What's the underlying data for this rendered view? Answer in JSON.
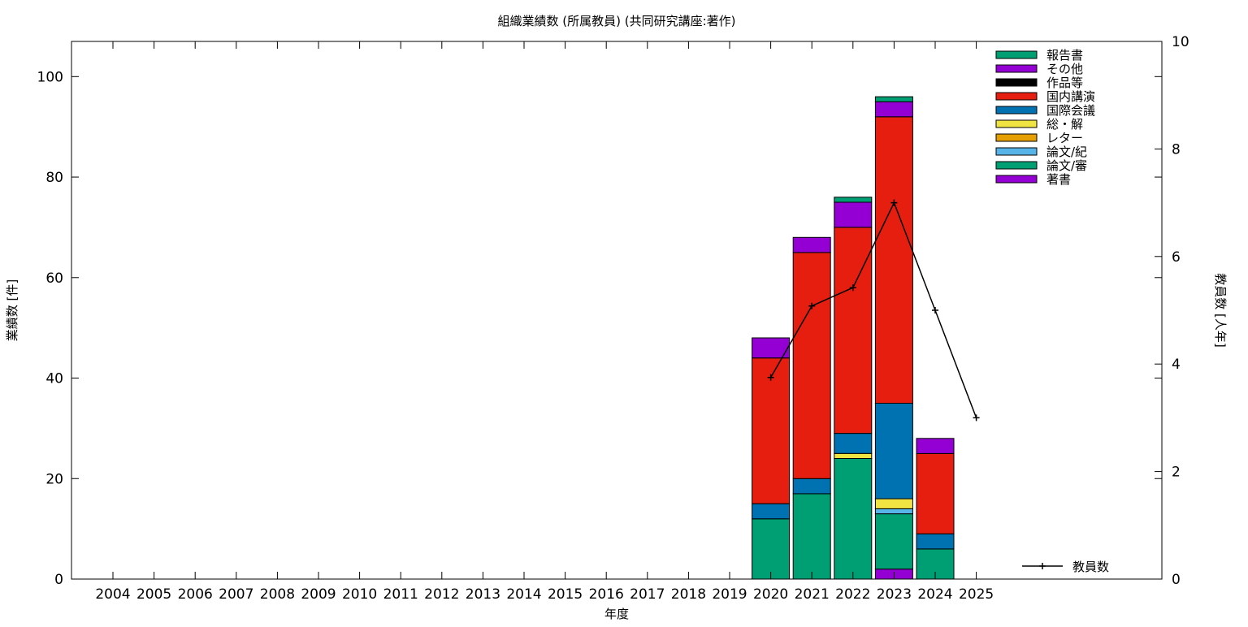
{
  "chart_data": {
    "type": "bar",
    "stacked": true,
    "title": "組織業績数 (所属教員) (共同研究講座:著作)",
    "xlabel": "年度",
    "ylabel": "業績数 [件]",
    "y2label": "教員数 [人年]",
    "ylim": [
      0,
      107
    ],
    "y2lim": [
      0,
      10
    ],
    "yticks": [
      0,
      20,
      40,
      60,
      80,
      100
    ],
    "y2ticks": [
      0,
      2,
      4,
      6,
      8,
      10
    ],
    "grid": false,
    "legend_position": "top-right",
    "categories": [
      "2004",
      "2005",
      "2006",
      "2007",
      "2008",
      "2009",
      "2010",
      "2011",
      "2012",
      "2013",
      "2014",
      "2015",
      "2016",
      "2017",
      "2018",
      "2019",
      "2020",
      "2021",
      "2022",
      "2023",
      "2024",
      "2025"
    ],
    "series": [
      {
        "name": "著書",
        "color": "#9400d3",
        "values": [
          0,
          0,
          0,
          0,
          0,
          0,
          0,
          0,
          0,
          0,
          0,
          0,
          0,
          0,
          0,
          0,
          0,
          0,
          0,
          2,
          0,
          0
        ]
      },
      {
        "name": "論文/審",
        "color": "#009e73",
        "values": [
          0,
          0,
          0,
          0,
          0,
          0,
          0,
          0,
          0,
          0,
          0,
          0,
          0,
          0,
          0,
          0,
          12,
          17,
          24,
          11,
          6,
          0
        ]
      },
      {
        "name": "論文/紀",
        "color": "#56b4e9",
        "values": [
          0,
          0,
          0,
          0,
          0,
          0,
          0,
          0,
          0,
          0,
          0,
          0,
          0,
          0,
          0,
          0,
          0,
          0,
          0,
          1,
          0,
          0
        ]
      },
      {
        "name": "レター",
        "color": "#e69f00",
        "values": [
          0,
          0,
          0,
          0,
          0,
          0,
          0,
          0,
          0,
          0,
          0,
          0,
          0,
          0,
          0,
          0,
          0,
          0,
          0,
          0,
          0,
          0
        ]
      },
      {
        "name": "総・解",
        "color": "#f0e442",
        "values": [
          0,
          0,
          0,
          0,
          0,
          0,
          0,
          0,
          0,
          0,
          0,
          0,
          0,
          0,
          0,
          0,
          0,
          0,
          1,
          2,
          0,
          0
        ]
      },
      {
        "name": "国際会議",
        "color": "#0072b2",
        "values": [
          0,
          0,
          0,
          0,
          0,
          0,
          0,
          0,
          0,
          0,
          0,
          0,
          0,
          0,
          0,
          0,
          3,
          3,
          4,
          19,
          3,
          0
        ]
      },
      {
        "name": "国内講演",
        "color": "#e51e10",
        "values": [
          0,
          0,
          0,
          0,
          0,
          0,
          0,
          0,
          0,
          0,
          0,
          0,
          0,
          0,
          0,
          0,
          29,
          45,
          41,
          57,
          16,
          0
        ]
      },
      {
        "name": "作品等",
        "color": "#000000",
        "values": [
          0,
          0,
          0,
          0,
          0,
          0,
          0,
          0,
          0,
          0,
          0,
          0,
          0,
          0,
          0,
          0,
          0,
          0,
          0,
          0,
          0,
          0
        ]
      },
      {
        "name": "その他",
        "color": "#9400d3",
        "values": [
          0,
          0,
          0,
          0,
          0,
          0,
          0,
          0,
          0,
          0,
          0,
          0,
          0,
          0,
          0,
          0,
          4,
          3,
          5,
          3,
          3,
          0
        ]
      },
      {
        "name": "報告書",
        "color": "#009e73",
        "values": [
          0,
          0,
          0,
          0,
          0,
          0,
          0,
          0,
          0,
          0,
          0,
          0,
          0,
          0,
          0,
          0,
          0,
          0,
          1,
          1,
          0,
          0
        ]
      }
    ],
    "line_series": {
      "name": "教員数",
      "axis": "y2",
      "color": "#000000",
      "points": [
        {
          "x": "2020",
          "y": 3.75
        },
        {
          "x": "2021",
          "y": 5.08
        },
        {
          "x": "2022",
          "y": 5.42
        },
        {
          "x": "2023",
          "y": 7.0
        },
        {
          "x": "2024",
          "y": 5.0
        },
        {
          "x": "2025",
          "y": 3.0
        }
      ]
    }
  }
}
